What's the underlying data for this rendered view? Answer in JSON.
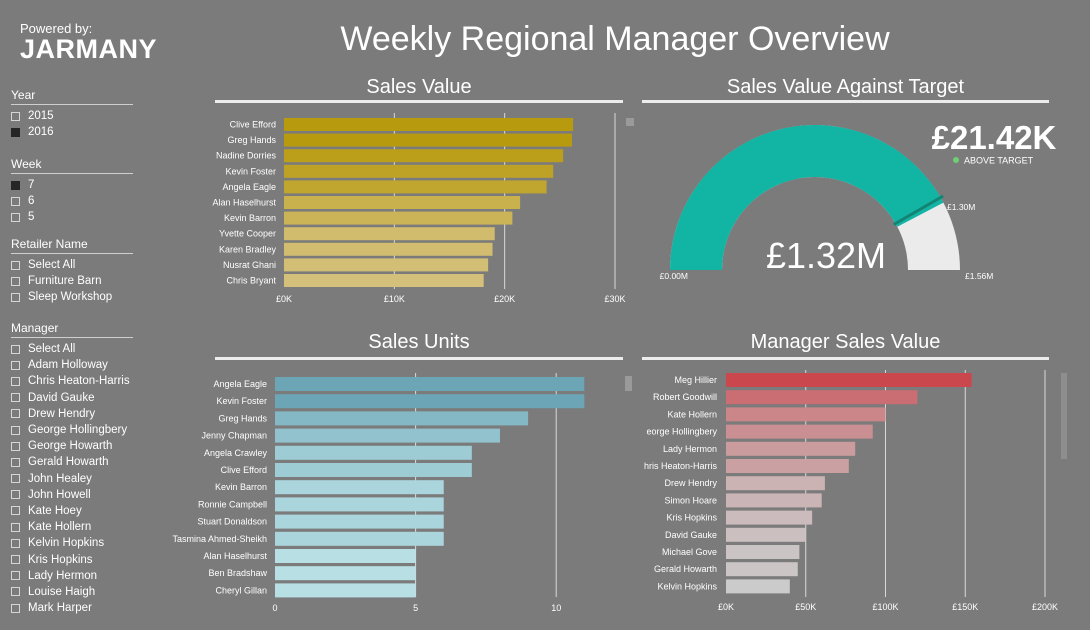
{
  "brand": {
    "powered_by": "Powered by:",
    "logo": "JARMANY"
  },
  "title": "Weekly Regional Manager Overview",
  "filters": {
    "year": {
      "title": "Year",
      "options": [
        {
          "label": "2015",
          "checked": false
        },
        {
          "label": "2016",
          "checked": true
        }
      ]
    },
    "week": {
      "title": "Week",
      "options": [
        {
          "label": "7",
          "checked": true
        },
        {
          "label": "6",
          "checked": false
        },
        {
          "label": "5",
          "checked": false
        }
      ]
    },
    "retailer": {
      "title": "Retailer Name",
      "options": [
        {
          "label": "Select All",
          "checked": false
        },
        {
          "label": "Furniture Barn",
          "checked": false
        },
        {
          "label": "Sleep Workshop",
          "checked": false
        }
      ]
    },
    "manager": {
      "title": "Manager",
      "options": [
        {
          "label": "Select All",
          "checked": false
        },
        {
          "label": "Adam Holloway",
          "checked": false
        },
        {
          "label": "Chris Heaton-Harris",
          "checked": false
        },
        {
          "label": "David Gauke",
          "checked": false
        },
        {
          "label": "Drew Hendry",
          "checked": false
        },
        {
          "label": "George Hollingbery",
          "checked": false
        },
        {
          "label": "George Howarth",
          "checked": false
        },
        {
          "label": "Gerald Howarth",
          "checked": false
        },
        {
          "label": "John Healey",
          "checked": false
        },
        {
          "label": "John Howell",
          "checked": false
        },
        {
          "label": "Kate Hoey",
          "checked": false
        },
        {
          "label": "Kate Hollern",
          "checked": false
        },
        {
          "label": "Kelvin Hopkins",
          "checked": false
        },
        {
          "label": "Kris Hopkins",
          "checked": false
        },
        {
          "label": "Lady Hermon",
          "checked": false
        },
        {
          "label": "Louise Haigh",
          "checked": false
        },
        {
          "label": "Mark Harper",
          "checked": false
        }
      ]
    }
  },
  "panels": {
    "sales_value": "Sales Value",
    "gauge": "Sales Value Against Target",
    "sales_units": "Sales Units",
    "manager_sales": "Manager Sales Value"
  },
  "chart_data": [
    {
      "type": "bar",
      "title": "Sales Value",
      "orientation": "horizontal",
      "categories": [
        "Clive Efford",
        "Greg Hands",
        "Nadine Dorries",
        "Kevin Foster",
        "Angela Eagle",
        "Alan Haselhurst",
        "Kevin Barron",
        "Yvette Cooper",
        "Karen Bradley",
        "Nusrat Ghani",
        "Chris Bryant"
      ],
      "values": [
        26200,
        26100,
        25300,
        24400,
        23800,
        21400,
        20700,
        19100,
        18900,
        18500,
        18100
      ],
      "xlim": [
        0,
        30000
      ],
      "ticks": [
        0,
        10000,
        20000,
        30000
      ],
      "tick_labels": [
        "£0K",
        "£10K",
        "£20K",
        "£30K"
      ],
      "colors": [
        "#b89a0e",
        "#d4c07a"
      ],
      "grid": true
    },
    {
      "type": "gauge",
      "title": "Sales Value Against Target",
      "value": 1320000,
      "value_label": "£1.32M",
      "min": 0,
      "min_label": "£0.00M",
      "max": 1560000,
      "max_label": "£1.56M",
      "target": 1300000,
      "target_label": "£1.30M",
      "variance_label": "£21.42K",
      "status_label": "ABOVE TARGET",
      "colors": {
        "fill": "#12b4a4",
        "track": "#ebebeb",
        "target": "#138474",
        "variance": "#6fcf74"
      }
    },
    {
      "type": "bar",
      "title": "Sales Units",
      "orientation": "horizontal",
      "categories": [
        "Angela Eagle",
        "Kevin Foster",
        "Greg Hands",
        "Jenny Chapman",
        "Angela Crawley",
        "Clive Efford",
        "Kevin Barron",
        "Ronnie Campbell",
        "Stuart Donaldson",
        "Tasmina Ahmed-Sheikh",
        "Alan Haselhurst",
        "Ben Bradshaw",
        "Cheryl Gillan"
      ],
      "values": [
        11,
        11,
        9,
        8,
        7,
        7,
        6,
        6,
        6,
        6,
        5,
        5,
        5
      ],
      "xlim": [
        0,
        11.7
      ],
      "ticks": [
        0,
        5,
        10
      ],
      "tick_labels": [
        "0",
        "5",
        "10"
      ],
      "colors": [
        "#6ba5b6",
        "#b8dfe4"
      ],
      "grid": true
    },
    {
      "type": "bar",
      "title": "Manager Sales Value",
      "orientation": "horizontal",
      "categories": [
        "Meg Hillier",
        "Robert Goodwill",
        "Kate Hollern",
        "eorge Hollingbery",
        "Lady Hermon",
        "hris Heaton-Harris",
        "Drew Hendry",
        "Simon Hoare",
        "Kris Hopkins",
        "David Gauke",
        "Michael Gove",
        "Gerald Howarth",
        "Kelvin Hopkins"
      ],
      "values": [
        154000,
        120000,
        100000,
        92000,
        81000,
        77000,
        62000,
        60000,
        54000,
        50000,
        46000,
        45000,
        40000
      ],
      "xlim": [
        0,
        200000
      ],
      "ticks": [
        0,
        50000,
        100000,
        150000,
        200000
      ],
      "tick_labels": [
        "£0K",
        "£50K",
        "£100K",
        "£150K",
        "£200K"
      ],
      "colors": [
        "#c9474d",
        "#cbcbcb"
      ],
      "grid": true
    }
  ]
}
